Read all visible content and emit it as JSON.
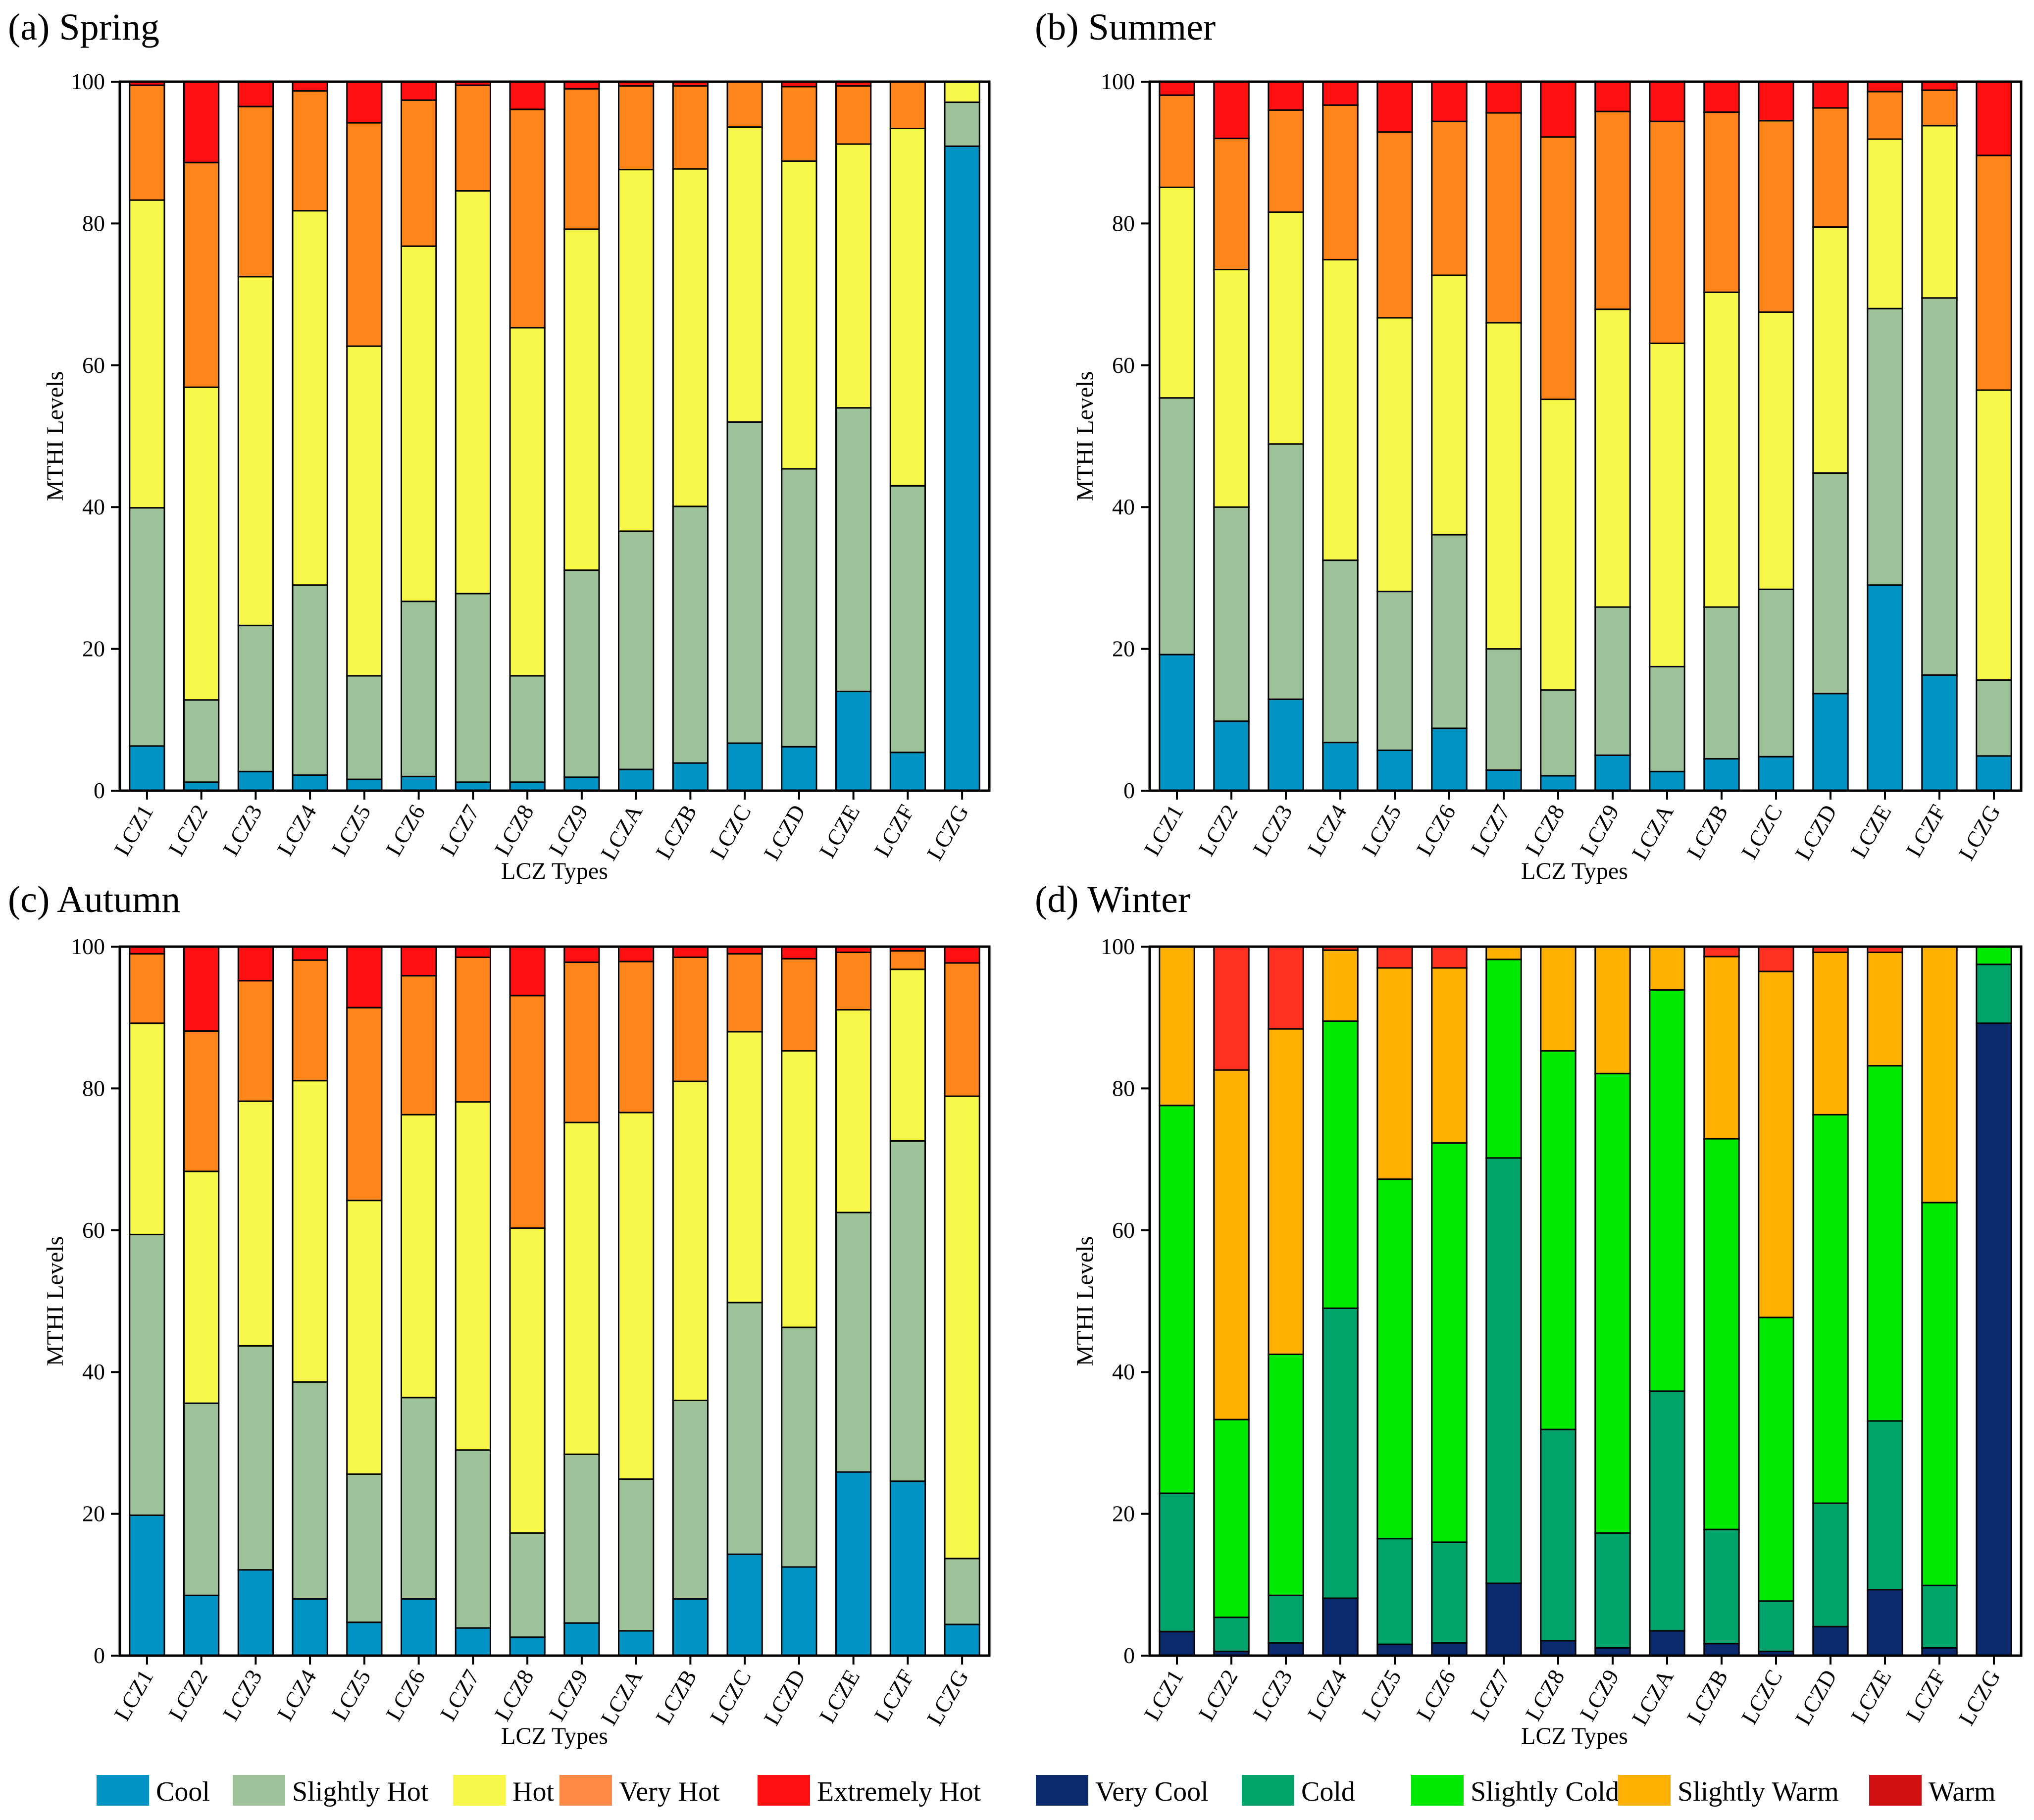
{
  "categories": [
    "LCZ1",
    "LCZ2",
    "LCZ3",
    "LCZ4",
    "LCZ5",
    "LCZ6",
    "LCZ7",
    "LCZ8",
    "LCZ9",
    "LCZA",
    "LCZB",
    "LCZC",
    "LCZD",
    "LCZE",
    "LCZF",
    "LCZG"
  ],
  "colors": {
    "Very Cool": "#0b2a6e",
    "Cool": "#0093c4",
    "Cold": "#00a46a",
    "Slightly Hot": "#9dc29a",
    "Slightly Cold": "#00ea00",
    "Hot": "#f7f74a",
    "Slightly Warm": "#ffb000",
    "Very Hot": "#ff841a",
    "Extremely Hot": "#ff0f0f",
    "Warm": "#d01010",
    "Winter Top": "#ff3020"
  },
  "legend": [
    {
      "label": "Cool",
      "color": "#0093c4"
    },
    {
      "label": "Slightly Hot",
      "color": "#9dc29a"
    },
    {
      "label": "Hot",
      "color": "#f7f74a"
    },
    {
      "label": "Very Hot",
      "color": "#ff8a45"
    },
    {
      "label": "Extremely Hot",
      "color": "#ff0f0f"
    },
    {
      "label": "Very Cool",
      "color": "#0b2a6e"
    },
    {
      "label": "Cold",
      "color": "#00a46a"
    },
    {
      "label": "Slightly Cold",
      "color": "#00ea00"
    },
    {
      "label": "Slightly Warm",
      "color": "#ffb000"
    },
    {
      "label": "Warm",
      "color": "#d01010"
    }
  ],
  "chart_data": [
    {
      "type": "bar",
      "stacked": true,
      "title": "(a) Spring",
      "xlabel": "LCZ Types",
      "ylabel": "MTHI Levels",
      "ylim": [
        0,
        100
      ],
      "yticks": [
        0,
        20,
        40,
        60,
        80,
        100
      ],
      "series": [
        {
          "name": "Cool",
          "colorKey": "Cool",
          "values": [
            6.3,
            1.2,
            2.7,
            2.2,
            1.6,
            2.0,
            1.2,
            1.2,
            1.9,
            3.0,
            3.9,
            6.7,
            6.2,
            14.0,
            5.4,
            90.9
          ]
        },
        {
          "name": "Slightly Hot",
          "colorKey": "Slightly Hot",
          "values": [
            33.6,
            11.6,
            20.6,
            26.8,
            14.6,
            24.7,
            26.6,
            15.0,
            29.2,
            33.6,
            36.2,
            45.3,
            39.2,
            40.0,
            37.6,
            6.2
          ]
        },
        {
          "name": "Hot",
          "colorKey": "Hot",
          "values": [
            43.4,
            44.1,
            49.2,
            52.8,
            46.5,
            50.1,
            56.8,
            49.1,
            48.1,
            51.0,
            47.6,
            41.6,
            43.4,
            37.2,
            50.4,
            2.9
          ]
        },
        {
          "name": "Very Hot",
          "colorKey": "Very Hot",
          "values": [
            16.2,
            31.7,
            24.0,
            16.9,
            31.5,
            20.6,
            14.9,
            30.8,
            19.8,
            11.8,
            11.7,
            6.4,
            10.5,
            8.2,
            6.6,
            0.0
          ]
        },
        {
          "name": "Extremely Hot",
          "colorKey": "Extremely Hot",
          "values": [
            0.5,
            11.4,
            3.5,
            1.3,
            5.8,
            2.6,
            0.5,
            3.9,
            1.0,
            0.6,
            0.6,
            0.0,
            0.7,
            0.6,
            0.0,
            0.0
          ]
        }
      ]
    },
    {
      "type": "bar",
      "stacked": true,
      "title": "(b) Summer",
      "xlabel": "LCZ Types",
      "ylabel": "MTHI Levels",
      "ylim": [
        0,
        100
      ],
      "yticks": [
        0,
        20,
        40,
        60,
        80,
        100
      ],
      "series": [
        {
          "name": "Cool",
          "colorKey": "Cool",
          "values": [
            19.2,
            9.8,
            12.9,
            6.8,
            5.7,
            8.8,
            2.9,
            2.1,
            5.0,
            2.7,
            4.5,
            4.8,
            13.7,
            29.0,
            16.3,
            4.9
          ]
        },
        {
          "name": "Slightly Hot",
          "colorKey": "Slightly Hot",
          "values": [
            36.2,
            30.2,
            36.0,
            25.7,
            22.4,
            27.3,
            17.1,
            12.1,
            20.9,
            14.8,
            21.4,
            23.6,
            31.1,
            39.0,
            53.2,
            10.7
          ]
        },
        {
          "name": "Hot",
          "colorKey": "Hot",
          "values": [
            29.7,
            33.5,
            32.7,
            42.4,
            38.6,
            36.6,
            46.0,
            41.0,
            42.0,
            45.6,
            44.4,
            39.1,
            34.7,
            23.9,
            24.3,
            40.9
          ]
        },
        {
          "name": "Very Hot",
          "colorKey": "Very Hot",
          "values": [
            13.0,
            18.5,
            14.4,
            21.8,
            26.2,
            21.7,
            29.6,
            37.0,
            27.9,
            31.3,
            25.4,
            27.0,
            16.8,
            6.7,
            5.0,
            33.1
          ]
        },
        {
          "name": "Extremely Hot",
          "colorKey": "Extremely Hot",
          "values": [
            1.9,
            8.0,
            4.0,
            3.3,
            7.1,
            5.6,
            4.4,
            7.8,
            4.2,
            5.6,
            4.3,
            5.5,
            3.7,
            1.4,
            1.2,
            10.4
          ]
        }
      ]
    },
    {
      "type": "bar",
      "stacked": true,
      "title": "(c) Autumn",
      "xlabel": "LCZ Types",
      "ylabel": "MTHI Levels",
      "ylim": [
        0,
        100
      ],
      "yticks": [
        0,
        20,
        40,
        60,
        80,
        100
      ],
      "series": [
        {
          "name": "Cool",
          "colorKey": "Cool",
          "values": [
            19.8,
            8.5,
            12.1,
            8.0,
            4.7,
            8.0,
            3.9,
            2.6,
            4.6,
            3.5,
            8.0,
            14.3,
            12.5,
            25.9,
            24.6,
            4.4
          ]
        },
        {
          "name": "Slightly Hot",
          "colorKey": "Slightly Hot",
          "values": [
            39.6,
            27.1,
            31.6,
            30.6,
            20.9,
            28.4,
            25.1,
            14.7,
            23.8,
            21.4,
            28.0,
            35.5,
            33.8,
            36.6,
            48.0,
            9.3
          ]
        },
        {
          "name": "Hot",
          "colorKey": "Hot",
          "values": [
            29.8,
            32.7,
            34.5,
            42.5,
            38.6,
            39.9,
            49.1,
            43.0,
            46.8,
            51.7,
            45.0,
            38.2,
            39.0,
            28.6,
            24.2,
            65.2
          ]
        },
        {
          "name": "Very Hot",
          "colorKey": "Very Hot",
          "values": [
            9.8,
            19.8,
            17.0,
            17.0,
            27.2,
            19.6,
            20.4,
            32.8,
            22.6,
            21.3,
            17.5,
            11.0,
            13.0,
            8.1,
            2.6,
            18.8
          ]
        },
        {
          "name": "Extremely Hot",
          "colorKey": "Extremely Hot",
          "values": [
            1.0,
            11.9,
            4.8,
            1.9,
            8.6,
            4.1,
            1.5,
            6.9,
            2.2,
            2.1,
            1.5,
            1.0,
            1.7,
            0.8,
            0.6,
            2.3
          ]
        }
      ]
    },
    {
      "type": "bar",
      "stacked": true,
      "title": "(d) Winter",
      "xlabel": "LCZ Types",
      "ylabel": "MTHI Levels",
      "ylim": [
        0,
        100
      ],
      "yticks": [
        0,
        20,
        40,
        60,
        80,
        100
      ],
      "series": [
        {
          "name": "Very Cool",
          "colorKey": "Very Cool",
          "values": [
            3.4,
            0.6,
            1.8,
            8.1,
            1.6,
            1.8,
            10.2,
            2.1,
            1.1,
            3.5,
            1.7,
            0.6,
            4.1,
            9.3,
            1.1,
            89.2
          ]
        },
        {
          "name": "Cold",
          "colorKey": "Cold",
          "values": [
            19.5,
            4.8,
            6.7,
            40.9,
            14.9,
            14.2,
            60.0,
            29.8,
            16.2,
            33.8,
            16.1,
            7.1,
            17.4,
            23.8,
            8.8,
            8.3
          ]
        },
        {
          "name": "Slightly Cold",
          "colorKey": "Slightly Cold",
          "values": [
            54.7,
            27.9,
            34.0,
            40.5,
            50.7,
            56.3,
            28.0,
            53.4,
            64.8,
            56.6,
            55.1,
            40.0,
            54.8,
            50.1,
            54.0,
            2.5
          ]
        },
        {
          "name": "Slightly Warm",
          "colorKey": "Slightly Warm",
          "values": [
            22.4,
            49.3,
            45.9,
            10.0,
            29.8,
            24.7,
            1.8,
            14.7,
            17.9,
            6.1,
            25.7,
            48.8,
            22.9,
            16.0,
            36.1,
            0.0
          ]
        },
        {
          "name": "Warm",
          "colorKey": "Winter Top",
          "values": [
            0.0,
            17.4,
            11.6,
            0.5,
            3.0,
            3.0,
            0.0,
            0.0,
            0.0,
            0.0,
            1.4,
            3.5,
            0.8,
            0.8,
            0.0,
            0.0
          ]
        }
      ]
    }
  ]
}
